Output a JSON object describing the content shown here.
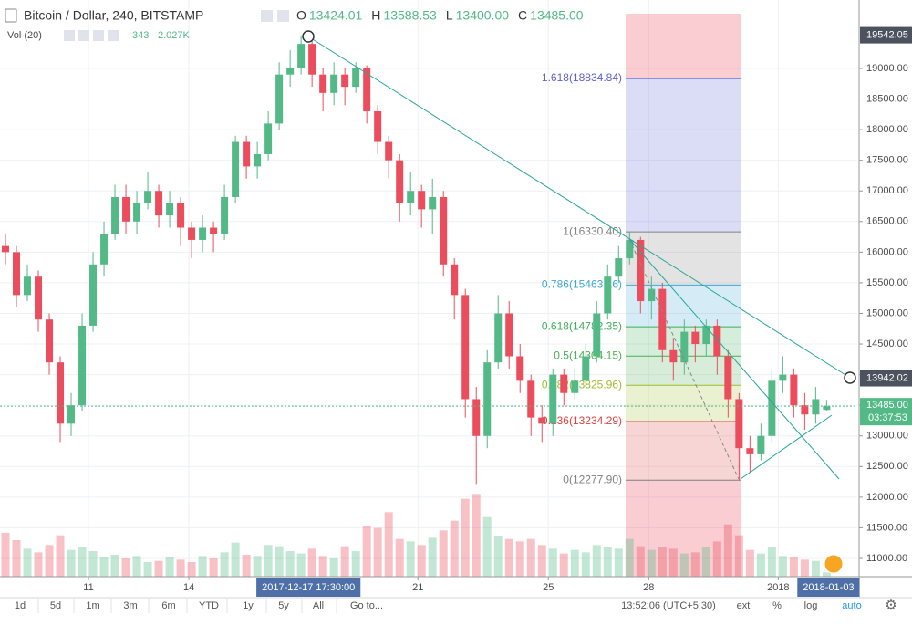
{
  "header": {
    "title": "Bitcoin / Dollar, 240, BITSTAMP",
    "ohlc": [
      {
        "key": "O",
        "value": "13424.01"
      },
      {
        "key": "H",
        "value": "13588.53"
      },
      {
        "key": "L",
        "value": "13400.00"
      },
      {
        "key": "C",
        "value": "13485.00"
      }
    ]
  },
  "volume_header": {
    "label": "Vol (20)",
    "value": "343",
    "ma": "2.027K"
  },
  "chart_data": {
    "type": "candlestick",
    "open": [
      16100,
      16000,
      15300,
      15600,
      14900,
      14200,
      13200,
      13500,
      14800,
      15800,
      16300,
      16900,
      16500,
      16800,
      17000,
      16600,
      16800,
      16400,
      16200,
      16400,
      16300,
      16900,
      17800,
      17400,
      17600,
      18100,
      18900,
      19000,
      19400,
      18900,
      18600,
      18900,
      18700,
      19000,
      18300,
      17800,
      17500,
      16800,
      17000,
      16700,
      16900,
      15800,
      15300,
      13600,
      13000,
      14200,
      15000,
      14300,
      13900,
      13300,
      13200,
      14000,
      13700,
      13900,
      14300,
      15000,
      15600,
      15900,
      16200,
      15200,
      15400,
      14400,
      14200,
      14700,
      14500,
      14800,
      14300,
      13600,
      12800,
      12700,
      13000,
      13900,
      14000,
      13500,
      13350,
      13424.01
    ],
    "high": [
      16300,
      16100,
      15800,
      15700,
      15000,
      14300,
      13700,
      15000,
      16000,
      16500,
      17100,
      17100,
      17000,
      17300,
      17100,
      17000,
      16900,
      16500,
      16600,
      16500,
      17100,
      17900,
      17900,
      17800,
      18300,
      19100,
      19300,
      19540,
      19450,
      19000,
      19100,
      19000,
      19100,
      19050,
      18400,
      17900,
      17600,
      17300,
      17100,
      17200,
      17000,
      15900,
      15400,
      13800,
      14400,
      15300,
      15200,
      14500,
      14000,
      13500,
      14100,
      14100,
      14100,
      14500,
      15200,
      15800,
      16100,
      16330.4,
      16250,
      15600,
      15500,
      14600,
      14900,
      14800,
      14900,
      14900,
      14400,
      13700,
      13000,
      13200,
      14100,
      14300,
      14100,
      13700,
      13800,
      13588.53
    ],
    "low": [
      15800,
      15100,
      15200,
      14700,
      14000,
      12900,
      13000,
      13400,
      14700,
      15600,
      16200,
      16300,
      16300,
      16700,
      16400,
      16400,
      16100,
      15900,
      16000,
      16000,
      16200,
      16800,
      17200,
      17200,
      17500,
      18000,
      18700,
      18900,
      18700,
      18300,
      18400,
      18400,
      18600,
      18100,
      17600,
      17200,
      16500,
      16600,
      16400,
      16300,
      15600,
      14900,
      13300,
      12200,
      12800,
      14100,
      14100,
      13700,
      13000,
      12900,
      13000,
      13500,
      13600,
      13800,
      14200,
      14900,
      15500,
      15800,
      15000,
      14900,
      14200,
      13900,
      14000,
      14200,
      14300,
      14000,
      13300,
      12277.9,
      12400,
      12600,
      12900,
      13700,
      13300,
      13100,
      13200,
      13400
    ],
    "close": [
      16000,
      15300,
      15600,
      14900,
      14200,
      13200,
      13500,
      14800,
      15800,
      16300,
      16900,
      16500,
      16800,
      17000,
      16600,
      16800,
      16400,
      16200,
      16400,
      16300,
      16900,
      17800,
      17400,
      17600,
      18100,
      18900,
      19000,
      19400,
      18900,
      18600,
      18900,
      18700,
      19000,
      18300,
      17800,
      17500,
      16800,
      17000,
      16700,
      16900,
      15800,
      15300,
      13600,
      13000,
      14200,
      15000,
      14300,
      13900,
      13300,
      13200,
      14000,
      13700,
      13900,
      14300,
      15000,
      15600,
      15900,
      16200,
      15200,
      15400,
      14400,
      14200,
      14700,
      14500,
      14800,
      14300,
      13600,
      12800,
      12700,
      13000,
      13900,
      14000,
      13500,
      13350,
      13600,
      13485
    ],
    "volume": [
      3600,
      3000,
      2300,
      2000,
      2600,
      3400,
      2200,
      2400,
      2100,
      1600,
      1800,
      1500,
      1700,
      1200,
      1300,
      1600,
      1400,
      1200,
      1700,
      1500,
      2000,
      2800,
      1800,
      1700,
      2600,
      2500,
      2100,
      1900,
      2300,
      1700,
      1500,
      2500,
      2100,
      4200,
      4000,
      5300,
      3100,
      2900,
      2600,
      3200,
      3800,
      4600,
      6400,
      6800,
      4900,
      3300,
      3100,
      2900,
      3100,
      2600,
      2300,
      1900,
      2200,
      2000,
      2600,
      2400,
      2300,
      3100,
      2500,
      2200,
      2400,
      2300,
      1900,
      2000,
      2400,
      2900,
      4300,
      3400,
      2200,
      1900,
      2400,
      1700,
      1600,
      1400,
      1300,
      343
    ],
    "up_color": "#53b987",
    "down_color": "#eb4d5c",
    "xlim": [
      -0.5,
      77.8
    ],
    "ylim": [
      10702,
      20117
    ],
    "vlim": [
      0,
      12000
    ],
    "yticks": [
      {
        "value": 11000,
        "label": "11000.00"
      },
      {
        "value": 11500,
        "label": "11500.00"
      },
      {
        "value": 12000,
        "label": "12000.00"
      },
      {
        "value": 12500,
        "label": "12500.00"
      },
      {
        "value": 13000,
        "label": "13000.00"
      },
      {
        "value": 13500,
        "label": "13500.00"
      },
      {
        "value": 14000,
        "label": "14000.00"
      },
      {
        "value": 14500,
        "label": "14500.00"
      },
      {
        "value": 15000,
        "label": "15000.00"
      },
      {
        "value": 15500,
        "label": "15500.00"
      },
      {
        "value": 16000,
        "label": "16000.00"
      },
      {
        "value": 16500,
        "label": "16500.00"
      },
      {
        "value": 17000,
        "label": "17000.00"
      },
      {
        "value": 17500,
        "label": "17500.00"
      },
      {
        "value": 18000,
        "label": "18000.00"
      },
      {
        "value": 18500,
        "label": "18500.00"
      },
      {
        "value": 19000,
        "label": "19000.00"
      }
    ],
    "xticks": [
      {
        "value": 7.58,
        "label": "11"
      },
      {
        "value": 16.75,
        "label": "14"
      },
      {
        "value": 37.67,
        "label": "21"
      },
      {
        "value": 49.58,
        "label": "25"
      },
      {
        "value": 58.75,
        "label": "28"
      },
      {
        "value": 70.58,
        "label": "2018"
      }
    ],
    "x_crosshair_labels": [
      {
        "value": 27.67,
        "label": "2017-12-17 17:30:00"
      },
      {
        "value": 75.17,
        "label": "2018-01-03"
      }
    ],
    "y_crosshair_labels": [
      19542.05,
      13942.02
    ],
    "current_price": {
      "value": 13485,
      "label": "13485.00",
      "countdown": "03:37:53",
      "color": "#53b987"
    },
    "grid": true,
    "fib_levels": [
      {
        "label": "1.618(18834.84)",
        "price": 18834.84,
        "color": "#5b5fd6"
      },
      {
        "label": "1(16330.40)",
        "price": 16330.4,
        "color": "#808080"
      },
      {
        "label": "0.786(15463.16)",
        "price": 15463.16,
        "color": "#3fa7d6"
      },
      {
        "label": "0.618(14782.35)",
        "price": 14782.35,
        "color": "#3fae5a"
      },
      {
        "label": "0.5(14304.15)",
        "price": 14304.15,
        "color": "#4caf50"
      },
      {
        "label": "0.382(13825.96)",
        "price": 13825.96,
        "color": "#9cbd2d"
      },
      {
        "label": "0.236(13234.29)",
        "price": 13234.29,
        "color": "#e04040"
      },
      {
        "label": "0(12277.90)",
        "price": 12277.9,
        "color": "#808080"
      }
    ]
  },
  "toolbar": {
    "ranges": [
      "1d",
      "5d",
      "1m",
      "3m",
      "6m",
      "YTD",
      "1y",
      "5y",
      "All"
    ],
    "goto": "Go to...",
    "clock": "13:52:06 (UTC+5:30)",
    "options": [
      "ext",
      "%",
      "log"
    ],
    "auto": "auto"
  }
}
